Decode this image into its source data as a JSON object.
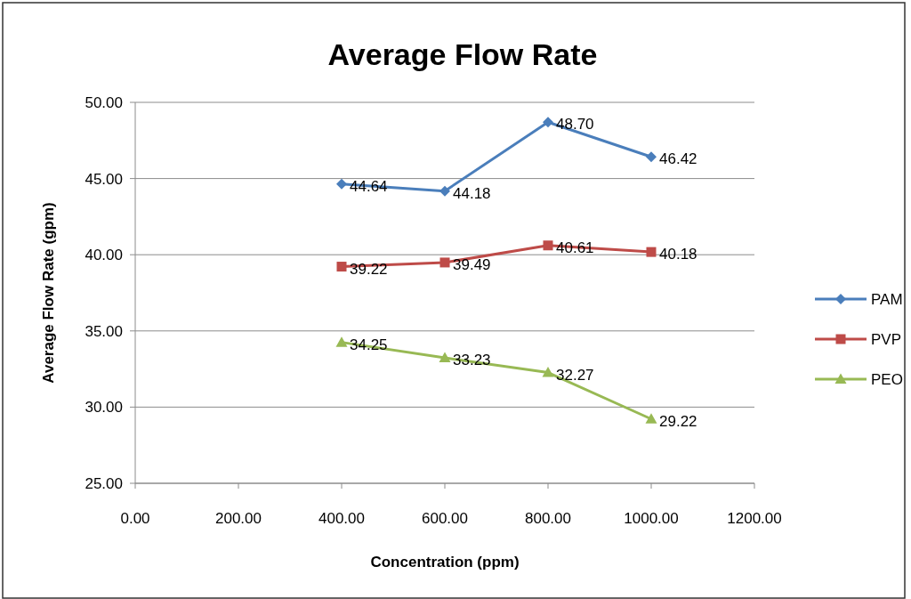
{
  "chart_data": {
    "type": "line",
    "title": "Average Flow Rate",
    "xlabel": "Concentration (ppm)",
    "ylabel": "Average Flow Rate (gpm)",
    "x": [
      400,
      600,
      800,
      1000
    ],
    "series": [
      {
        "name": "PAM",
        "color": "#4a7ebb",
        "marker": "diamond",
        "values": [
          44.64,
          44.18,
          48.7,
          46.42
        ],
        "value_labels": [
          "44.64",
          "44.18",
          "48.70",
          "46.42"
        ]
      },
      {
        "name": "PVP",
        "color": "#be4b48",
        "marker": "square",
        "values": [
          39.22,
          39.49,
          40.61,
          40.18
        ],
        "value_labels": [
          "39.22",
          "39.49",
          "40.61",
          "40.18"
        ]
      },
      {
        "name": "PEO",
        "color": "#98b954",
        "marker": "triangle",
        "values": [
          34.25,
          33.23,
          32.27,
          29.22
        ],
        "value_labels": [
          "34.25",
          "33.23",
          "32.27",
          "29.22"
        ]
      }
    ],
    "xlim": [
      0,
      1200
    ],
    "xticks": [
      {
        "value": 0,
        "label": "0.00"
      },
      {
        "value": 200,
        "label": "200.00"
      },
      {
        "value": 400,
        "label": "400.00"
      },
      {
        "value": 600,
        "label": "600.00"
      },
      {
        "value": 800,
        "label": "800.00"
      },
      {
        "value": 1000,
        "label": "1000.00"
      },
      {
        "value": 1200,
        "label": "1200.00"
      }
    ],
    "ylim": [
      25,
      50
    ],
    "yticks": [
      {
        "value": 25,
        "label": "25.00"
      },
      {
        "value": 30,
        "label": "30.00"
      },
      {
        "value": 35,
        "label": "35.00"
      },
      {
        "value": 40,
        "label": "40.00"
      },
      {
        "value": 45,
        "label": "45.00"
      },
      {
        "value": 50,
        "label": "50.00"
      }
    ],
    "grid": "y",
    "legend": "right"
  }
}
